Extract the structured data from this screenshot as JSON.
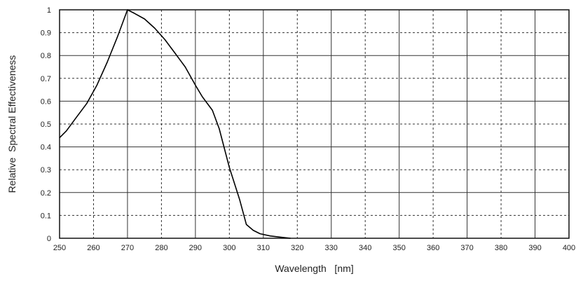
{
  "chart_data": {
    "type": "line",
    "title": "",
    "xlabel": "Wavelength   [nm]",
    "ylabel": "Relative  Spectral Effectiveness",
    "xlim": [
      250,
      400
    ],
    "ylim": [
      0,
      1
    ],
    "x_ticks": [
      250,
      260,
      270,
      280,
      290,
      300,
      310,
      320,
      330,
      340,
      350,
      360,
      370,
      380,
      390,
      400
    ],
    "x_tick_labels": [
      "250",
      "260",
      "270",
      "280",
      "290",
      "300",
      "310",
      "320",
      "330",
      "340",
      "350",
      "360",
      "370",
      "380",
      "390",
      "400"
    ],
    "y_ticks": [
      0,
      0.1,
      0.2,
      0.3,
      0.4,
      0.5,
      0.6,
      0.7,
      0.8,
      0.9,
      1
    ],
    "y_tick_labels": [
      "0",
      "0.1",
      "0.2",
      "0.3",
      "0.4",
      "0.5",
      "0.6",
      "0.7",
      "0.8",
      "0.9",
      "1"
    ],
    "grid": true,
    "line_color": "#000000",
    "grid_color": "#333333",
    "series": [
      {
        "x": [
          250,
          252,
          255,
          258,
          261,
          264,
          267,
          270,
          272,
          275,
          278,
          281,
          284,
          287,
          290,
          292,
          295,
          297,
          300,
          303,
          305,
          307,
          309,
          312,
          315,
          318
        ],
        "y": [
          0.44,
          0.47,
          0.53,
          0.59,
          0.67,
          0.77,
          0.88,
          1.0,
          0.985,
          0.96,
          0.92,
          0.87,
          0.81,
          0.75,
          0.67,
          0.62,
          0.56,
          0.48,
          0.31,
          0.17,
          0.06,
          0.035,
          0.02,
          0.01,
          0.005,
          0.0
        ]
      }
    ]
  }
}
